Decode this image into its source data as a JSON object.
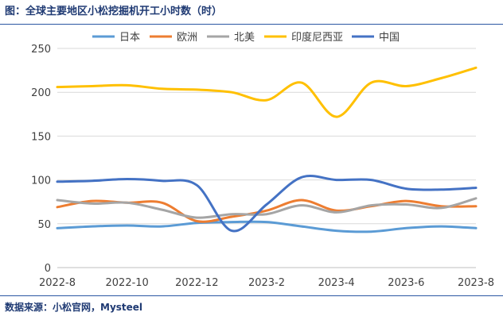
{
  "figure": {
    "title": "图：全球主要地区小松挖掘机开工小时数（时）",
    "source": "数据来源：小松官网，Mysteel"
  },
  "chart_data": {
    "type": "line",
    "title": "",
    "xlabel": "",
    "ylabel": "",
    "ylim": [
      0,
      250
    ],
    "yticks": [
      0,
      50,
      100,
      150,
      200,
      250
    ],
    "x": [
      "2022-8",
      "2022-9",
      "2022-10",
      "2022-11",
      "2022-12",
      "2023-1",
      "2023-2",
      "2023-3",
      "2023-4",
      "2023-5",
      "2023-6",
      "2023-7",
      "2023-8"
    ],
    "xticks": [
      "2022-8",
      "2022-10",
      "2022-12",
      "2023-2",
      "2023-4",
      "2023-6",
      "2023-8"
    ],
    "grid": "horizontal",
    "legend_position": "top",
    "series": [
      {
        "name": "日本",
        "color": "#5b9bd5",
        "values": [
          45,
          47,
          48,
          47,
          51,
          52,
          52,
          47,
          42,
          41,
          45,
          47,
          45
        ]
      },
      {
        "name": "欧洲",
        "color": "#ed7d31",
        "values": [
          69,
          76,
          74,
          74,
          53,
          58,
          65,
          77,
          65,
          70,
          76,
          70,
          70
        ]
      },
      {
        "name": "北美",
        "color": "#a5a5a5",
        "values": [
          77,
          73,
          74,
          66,
          57,
          61,
          61,
          71,
          63,
          71,
          72,
          68,
          79
        ]
      },
      {
        "name": "印度尼西亚",
        "color": "#ffc000",
        "values": [
          206,
          207,
          208,
          204,
          203,
          200,
          191,
          211,
          172,
          211,
          207,
          216,
          228
        ]
      },
      {
        "name": "中国",
        "color": "#4472c4",
        "values": [
          98,
          99,
          101,
          99,
          94,
          42,
          72,
          103,
          100,
          100,
          90,
          89,
          91
        ]
      }
    ]
  }
}
